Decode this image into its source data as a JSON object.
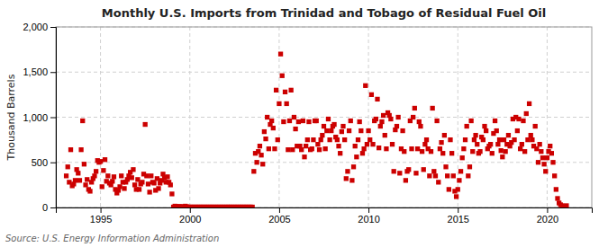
{
  "chart_data": {
    "type": "scatter",
    "title": "Monthly U.S. Imports from Trinidad and Tobago of Residual Fuel Oil",
    "y_label": "Thousand Barrels",
    "annotation": "Source: U.S. Energy Information Administration",
    "color": "#cc0000",
    "marker": "square",
    "grid": true,
    "xlim": [
      1992.5,
      2022.5
    ],
    "ylim": [
      0,
      2000
    ],
    "xticks": [
      1995,
      2000,
      2005,
      2010,
      2015,
      2020
    ],
    "yticks": [
      0,
      500,
      {
        "value": 1000,
        "label": "1,000"
      },
      {
        "value": 1500,
        "label": "1,500"
      },
      {
        "value": 2000,
        "label": "2,000"
      }
    ],
    "x": [
      1993.0833,
      1993.1667,
      1993.25,
      1993.3333,
      1993.4167,
      1993.5,
      1993.5833,
      1993.6667,
      1993.75,
      1993.8333,
      1993.9167,
      1994.0,
      1994.0833,
      1994.1667,
      1994.25,
      1994.3333,
      1994.4167,
      1994.5,
      1994.5833,
      1994.6667,
      1994.75,
      1994.8333,
      1994.9167,
      1995.0,
      1995.0833,
      1995.1667,
      1995.25,
      1995.3333,
      1995.4167,
      1995.5,
      1995.5833,
      1995.6667,
      1995.75,
      1995.8333,
      1995.9167,
      1996.0,
      1996.0833,
      1996.1667,
      1996.25,
      1996.3333,
      1996.4167,
      1996.5,
      1996.5833,
      1996.6667,
      1996.75,
      1996.8333,
      1996.9167,
      1997.0,
      1997.0833,
      1997.1667,
      1997.25,
      1997.3333,
      1997.4167,
      1997.5,
      1997.5833,
      1997.6667,
      1997.75,
      1997.8333,
      1997.9167,
      1998.0,
      1998.0833,
      1998.1667,
      1998.25,
      1998.3333,
      1998.4167,
      1998.5,
      1998.5833,
      1998.6667,
      1998.75,
      1998.8333,
      1998.9167,
      1999.0,
      1999.0833,
      1999.1667,
      1999.25,
      1999.3333,
      1999.4167,
      1999.5,
      1999.5833,
      1999.6667,
      1999.75,
      1999.8333,
      1999.9167,
      2000.0,
      2000.0833,
      2000.1667,
      2000.25,
      2000.3333,
      2000.4167,
      2000.5,
      2000.5833,
      2000.6667,
      2000.75,
      2000.8333,
      2000.9167,
      2001.0,
      2001.0833,
      2001.1667,
      2001.25,
      2001.3333,
      2001.4167,
      2001.5,
      2001.5833,
      2001.6667,
      2001.75,
      2001.8333,
      2001.9167,
      2002.0,
      2002.0833,
      2002.1667,
      2002.25,
      2002.3333,
      2002.4167,
      2002.5,
      2002.5833,
      2002.6667,
      2002.75,
      2002.8333,
      2002.9167,
      2003.0,
      2003.0833,
      2003.1667,
      2003.25,
      2003.3333,
      2003.4167,
      2003.5,
      2003.5833,
      2003.6667,
      2003.75,
      2003.8333,
      2003.9167,
      2004.0,
      2004.0833,
      2004.1667,
      2004.25,
      2004.3333,
      2004.4167,
      2004.5,
      2004.5833,
      2004.6667,
      2004.75,
      2004.8333,
      2004.9167,
      2005.0,
      2005.0833,
      2005.1667,
      2005.25,
      2005.3333,
      2005.4167,
      2005.5,
      2005.5833,
      2005.6667,
      2005.75,
      2005.8333,
      2005.9167,
      2006.0,
      2006.0833,
      2006.1667,
      2006.25,
      2006.3333,
      2006.4167,
      2006.5,
      2006.5833,
      2006.6667,
      2006.75,
      2006.8333,
      2006.9167,
      2007.0,
      2007.0833,
      2007.1667,
      2007.25,
      2007.3333,
      2007.4167,
      2007.5,
      2007.5833,
      2007.6667,
      2007.75,
      2007.8333,
      2007.9167,
      2008.0,
      2008.0833,
      2008.1667,
      2008.25,
      2008.3333,
      2008.4167,
      2008.5,
      2008.5833,
      2008.6667,
      2008.75,
      2008.8333,
      2008.9167,
      2009.0,
      2009.0833,
      2009.1667,
      2009.25,
      2009.3333,
      2009.4167,
      2009.5,
      2009.5833,
      2009.6667,
      2009.75,
      2009.8333,
      2009.9167,
      2010.0,
      2010.0833,
      2010.1667,
      2010.25,
      2010.3333,
      2010.4167,
      2010.5,
      2010.5833,
      2010.6667,
      2010.75,
      2010.8333,
      2010.9167,
      2011.0,
      2011.0833,
      2011.1667,
      2011.25,
      2011.3333,
      2011.4167,
      2011.5,
      2011.5833,
      2011.6667,
      2011.75,
      2011.8333,
      2011.9167,
      2012.0,
      2012.0833,
      2012.1667,
      2012.25,
      2012.3333,
      2012.4167,
      2012.5,
      2012.5833,
      2012.6667,
      2012.75,
      2012.8333,
      2012.9167,
      2013.0,
      2013.0833,
      2013.1667,
      2013.25,
      2013.3333,
      2013.4167,
      2013.5,
      2013.5833,
      2013.6667,
      2013.75,
      2013.8333,
      2013.9167,
      2014.0,
      2014.0833,
      2014.1667,
      2014.25,
      2014.3333,
      2014.4167,
      2014.5,
      2014.5833,
      2014.6667,
      2014.75,
      2014.8333,
      2014.9167,
      2015.0,
      2015.0833,
      2015.1667,
      2015.25,
      2015.3333,
      2015.4167,
      2015.5,
      2015.5833,
      2015.6667,
      2015.75,
      2015.8333,
      2015.9167,
      2016.0,
      2016.0833,
      2016.1667,
      2016.25,
      2016.3333,
      2016.4167,
      2016.5,
      2016.5833,
      2016.6667,
      2016.75,
      2016.8333,
      2016.9167,
      2017.0,
      2017.0833,
      2017.1667,
      2017.25,
      2017.3333,
      2017.4167,
      2017.5,
      2017.5833,
      2017.6667,
      2017.75,
      2017.8333,
      2017.9167,
      2018.0,
      2018.0833,
      2018.1667,
      2018.25,
      2018.3333,
      2018.4167,
      2018.5,
      2018.5833,
      2018.6667,
      2018.75,
      2018.8333,
      2018.9167,
      2019.0,
      2019.0833,
      2019.1667,
      2019.25,
      2019.3333,
      2019.4167,
      2019.5,
      2019.5833,
      2019.6667,
      2019.75,
      2019.8333,
      2019.9167,
      2020.0,
      2020.0833,
      2020.1667,
      2020.25,
      2020.3333,
      2020.4167,
      2020.5,
      2020.5833,
      2020.6667,
      2020.75,
      2020.8333,
      2020.9167,
      2021.0,
      2021.0833
    ],
    "values": [
      350,
      450,
      280,
      640,
      240,
      260,
      300,
      420,
      380,
      300,
      640,
      960,
      480,
      250,
      310,
      200,
      180,
      280,
      320,
      350,
      400,
      520,
      500,
      510,
      230,
      410,
      530,
      290,
      350,
      270,
      250,
      290,
      340,
      200,
      160,
      190,
      230,
      350,
      280,
      210,
      280,
      310,
      350,
      390,
      330,
      420,
      250,
      200,
      310,
      200,
      260,
      280,
      370,
      920,
      350,
      260,
      170,
      350,
      280,
      270,
      190,
      320,
      210,
      270,
      300,
      370,
      330,
      280,
      340,
      280,
      250,
      150,
      5,
      15,
      10,
      8,
      12,
      5,
      8,
      10,
      15,
      8,
      5,
      5,
      5,
      5,
      5,
      5,
      5,
      5,
      5,
      5,
      5,
      5,
      5,
      5,
      5,
      5,
      5,
      5,
      5,
      5,
      5,
      5,
      5,
      5,
      5,
      5,
      5,
      5,
      5,
      5,
      5,
      5,
      5,
      5,
      5,
      5,
      5,
      5,
      5,
      5,
      5,
      5,
      5,
      5,
      400,
      600,
      500,
      620,
      680,
      580,
      480,
      840,
      760,
      1000,
      650,
      920,
      960,
      880,
      650,
      1300,
      750,
      1150,
      1700,
      1460,
      950,
      1280,
      1150,
      640,
      960,
      1300,
      640,
      1000,
      870,
      680,
      950,
      680,
      640,
      960,
      560,
      680,
      750,
      950,
      640,
      650,
      750,
      960,
      960,
      700,
      640,
      750,
      800,
      900,
      650,
      850,
      980,
      750,
      850,
      900,
      920,
      780,
      750,
      680,
      600,
      840,
      900,
      750,
      320,
      400,
      850,
      960,
      300,
      450,
      680,
      560,
      750,
      950,
      850,
      600,
      650,
      1350,
      700,
      850,
      750,
      1250,
      700,
      960,
      980,
      1200,
      660,
      900,
      950,
      1020,
      800,
      650,
      1050,
      1020,
      980,
      700,
      400,
      860,
      900,
      1000,
      380,
      650,
      850,
      620,
      300,
      400,
      420,
      960,
      650,
      1000,
      1100,
      380,
      650,
      950,
      900,
      620,
      420,
      700,
      750,
      650,
      350,
      620,
      1100,
      400,
      350,
      960,
      280,
      650,
      720,
      600,
      800,
      450,
      350,
      200,
      750,
      600,
      350,
      180,
      120,
      200,
      300,
      400,
      550,
      650,
      750,
      900,
      350,
      450,
      960,
      620,
      750,
      800,
      700,
      600,
      620,
      780,
      750,
      900,
      850,
      650,
      680,
      700,
      600,
      820,
      960,
      850,
      700,
      750,
      630,
      560,
      750,
      620,
      700,
      800,
      680,
      720,
      980,
      750,
      1000,
      850,
      980,
      650,
      700,
      960,
      620,
      1040,
      750,
      1150,
      800,
      750,
      680,
      900,
      650,
      500,
      700,
      620,
      550,
      480,
      400,
      550,
      620,
      680,
      600,
      500,
      350,
      200,
      100,
      50,
      30,
      20,
      10,
      5,
      20
    ]
  }
}
